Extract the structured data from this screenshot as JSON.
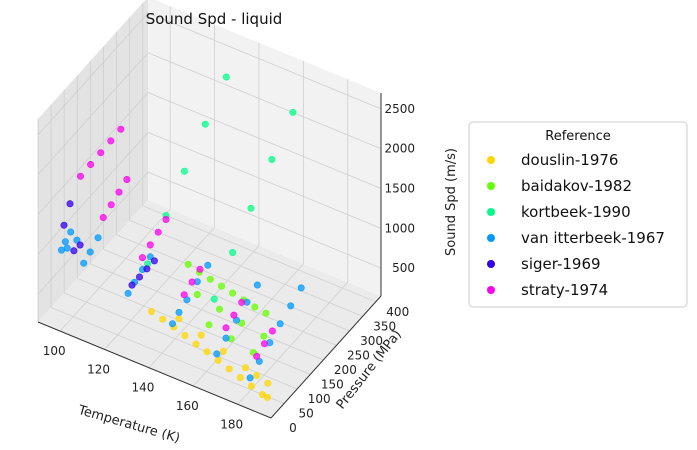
{
  "chart_data": {
    "type": "scatter",
    "projection": "3d",
    "title": "Sound Spd - liquid",
    "xlabel": "Temperature (K)",
    "ylabel": "Pressure (MPa)",
    "zlabel": "Sound Spd (m/s)",
    "xlim": [
      90,
      195
    ],
    "ylim": [
      0,
      420
    ],
    "zlim": [
      150,
      2700
    ],
    "xticks": [
      100,
      120,
      140,
      160,
      180
    ],
    "yticks": [
      0,
      50,
      100,
      150,
      200,
      250,
      300,
      350,
      400
    ],
    "zticks": [
      500,
      1000,
      1500,
      2000,
      2500
    ],
    "grid": true,
    "legend": {
      "title": "Reference",
      "placement": "right"
    },
    "series": [
      {
        "name": "douslin-1976",
        "color": "#ffd700",
        "points": [
          [
            140,
            10,
            820
          ],
          [
            145,
            10,
            780
          ],
          [
            150,
            10,
            740
          ],
          [
            155,
            10,
            690
          ],
          [
            160,
            10,
            640
          ],
          [
            165,
            10,
            600
          ],
          [
            170,
            10,
            550
          ],
          [
            175,
            10,
            500
          ],
          [
            180,
            10,
            450
          ],
          [
            185,
            10,
            400
          ],
          [
            190,
            10,
            350
          ],
          [
            192,
            12,
            330
          ],
          [
            150,
            30,
            770
          ],
          [
            160,
            30,
            680
          ],
          [
            170,
            30,
            590
          ],
          [
            180,
            30,
            500
          ],
          [
            185,
            30,
            460
          ],
          [
            190,
            30,
            420
          ]
        ]
      },
      {
        "name": "baidakov-1982",
        "color": "#66ff00",
        "points": [
          [
            140,
            150,
            900
          ],
          [
            145,
            150,
            860
          ],
          [
            150,
            150,
            830
          ],
          [
            155,
            150,
            800
          ],
          [
            160,
            150,
            770
          ],
          [
            165,
            150,
            740
          ],
          [
            170,
            150,
            710
          ],
          [
            175,
            150,
            690
          ],
          [
            150,
            100,
            820
          ],
          [
            160,
            100,
            750
          ],
          [
            170,
            100,
            690
          ],
          [
            180,
            100,
            640
          ],
          [
            160,
            60,
            700
          ],
          [
            170,
            60,
            640
          ],
          [
            180,
            60,
            580
          ]
        ]
      },
      {
        "name": "kortbeek-1990",
        "color": "#00ff88",
        "points": [
          [
            130,
            380,
            2300
          ],
          [
            130,
            300,
            2000
          ],
          [
            130,
            220,
            1700
          ],
          [
            130,
            150,
            1400
          ],
          [
            130,
            80,
            1050
          ],
          [
            160,
            380,
            2200
          ],
          [
            160,
            300,
            1900
          ],
          [
            160,
            220,
            1580
          ],
          [
            160,
            150,
            1280
          ],
          [
            160,
            80,
            950
          ]
        ]
      },
      {
        "name": "van itterbeek-1967",
        "color": "#0099ff",
        "points": [
          [
            100,
            5,
            1150
          ],
          [
            100,
            20,
            1200
          ],
          [
            100,
            40,
            1250
          ],
          [
            102,
            10,
            1180
          ],
          [
            104,
            30,
            1230
          ],
          [
            110,
            5,
            1100
          ],
          [
            110,
            30,
            1150
          ],
          [
            110,
            60,
            1220
          ],
          [
            130,
            5,
            950
          ],
          [
            130,
            30,
            1000
          ],
          [
            130,
            60,
            1050
          ],
          [
            130,
            90,
            1100
          ],
          [
            150,
            5,
            800
          ],
          [
            150,
            30,
            850
          ],
          [
            150,
            60,
            900
          ],
          [
            150,
            100,
            980
          ],
          [
            150,
            140,
            1040
          ],
          [
            170,
            5,
            650
          ],
          [
            170,
            40,
            720
          ],
          [
            170,
            80,
            800
          ],
          [
            170,
            120,
            880
          ],
          [
            170,
            160,
            950
          ],
          [
            185,
            5,
            520
          ],
          [
            185,
            40,
            600
          ],
          [
            185,
            80,
            690
          ],
          [
            185,
            120,
            780
          ],
          [
            185,
            160,
            860
          ],
          [
            185,
            200,
            940
          ]
        ]
      },
      {
        "name": "siger-1969",
        "color": "#3300ee",
        "points": [
          [
            95,
            80,
            1400
          ],
          [
            97,
            40,
            1300
          ],
          [
            105,
            10,
            1180
          ],
          [
            106,
            25,
            1210
          ],
          [
            130,
            20,
            1000
          ],
          [
            131,
            40,
            1040
          ],
          [
            132,
            60,
            1080
          ],
          [
            133,
            80,
            1120
          ]
        ]
      },
      {
        "name": "straty-1974",
        "color": "#ff00ee",
        "points": [
          [
            95,
            120,
            1600
          ],
          [
            96,
            150,
            1650
          ],
          [
            97,
            180,
            1700
          ],
          [
            98,
            210,
            1750
          ],
          [
            99,
            240,
            1800
          ],
          [
            110,
            80,
            1400
          ],
          [
            110,
            110,
            1450
          ],
          [
            110,
            140,
            1500
          ],
          [
            110,
            170,
            1550
          ],
          [
            130,
            60,
            1200
          ],
          [
            130,
            90,
            1250
          ],
          [
            130,
            120,
            1300
          ],
          [
            130,
            150,
            1350
          ],
          [
            150,
            50,
            1000
          ],
          [
            150,
            80,
            1050
          ],
          [
            150,
            110,
            1100
          ],
          [
            170,
            40,
            850
          ],
          [
            170,
            70,
            900
          ],
          [
            170,
            100,
            950
          ],
          [
            185,
            30,
            700
          ],
          [
            185,
            60,
            750
          ],
          [
            185,
            90,
            800
          ]
        ]
      }
    ]
  }
}
